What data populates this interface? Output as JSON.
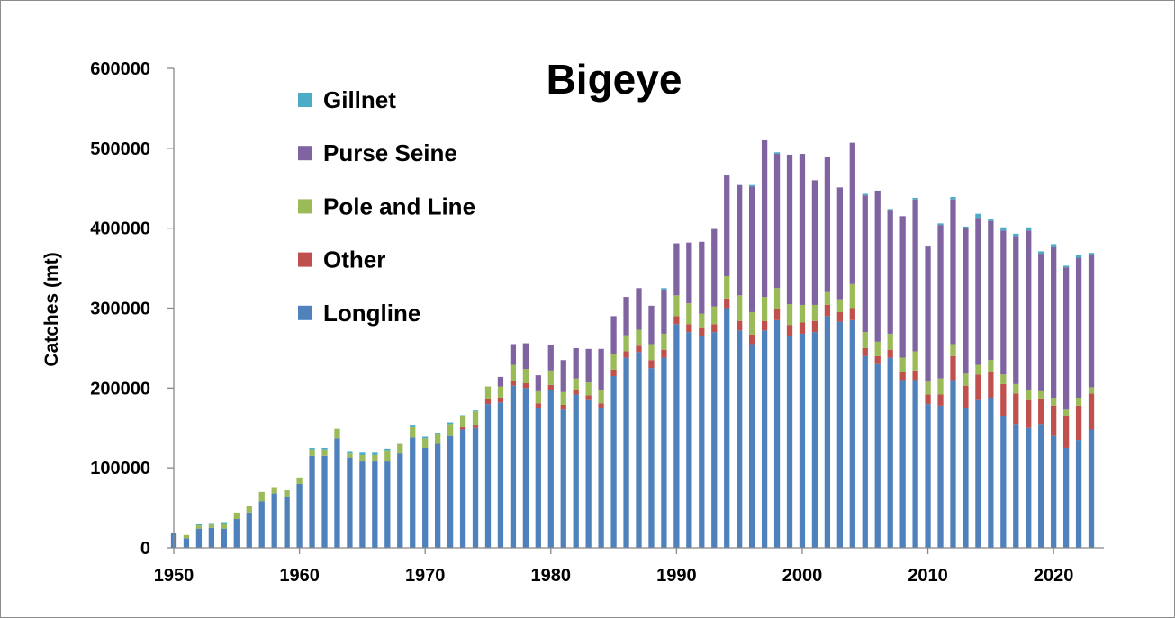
{
  "chart_data": {
    "type": "bar",
    "stacked": true,
    "title": "Bigeye",
    "xlabel": "",
    "ylabel": "Catches (mt)",
    "ylim": [
      0,
      600000
    ],
    "yticks": [
      0,
      100000,
      200000,
      300000,
      400000,
      500000,
      600000
    ],
    "yticks_labels": [
      "0",
      "100000",
      "200000",
      "300000",
      "400000",
      "500000",
      "600000"
    ],
    "xticks": [
      1950,
      1960,
      1970,
      1980,
      1990,
      2000,
      2010,
      2020
    ],
    "xticks_labels": [
      "1950",
      "1960",
      "1970",
      "1980",
      "1990",
      "2000",
      "2010",
      "2020"
    ],
    "grid": false,
    "legend_position": "top-left",
    "legend_order": [
      "Gillnet",
      "Purse Seine",
      "Pole and Line",
      "Other",
      "Longline"
    ],
    "x": [
      1950,
      1951,
      1952,
      1953,
      1954,
      1955,
      1956,
      1957,
      1958,
      1959,
      1960,
      1961,
      1962,
      1963,
      1964,
      1965,
      1966,
      1967,
      1968,
      1969,
      1970,
      1971,
      1972,
      1973,
      1974,
      1975,
      1976,
      1977,
      1978,
      1979,
      1980,
      1981,
      1982,
      1983,
      1984,
      1985,
      1986,
      1987,
      1988,
      1989,
      1990,
      1991,
      1992,
      1993,
      1994,
      1995,
      1996,
      1997,
      1998,
      1999,
      2000,
      2001,
      2002,
      2003,
      2004,
      2005,
      2006,
      2007,
      2008,
      2009,
      2010,
      2011,
      2012,
      2013,
      2014,
      2015,
      2016,
      2017,
      2018,
      2019,
      2020,
      2021,
      2022,
      2023
    ],
    "series": [
      {
        "name": "Longline",
        "color": "#4F81BD",
        "values": [
          18000,
          12000,
          24000,
          25000,
          24000,
          36000,
          44000,
          58000,
          68000,
          64000,
          80000,
          115000,
          115000,
          137000,
          113000,
          108000,
          108000,
          108000,
          118000,
          138000,
          125000,
          130000,
          140000,
          148000,
          150000,
          180000,
          182000,
          203000,
          200000,
          175000,
          198000,
          173000,
          192000,
          185000,
          175000,
          215000,
          238000,
          245000,
          225000,
          238000,
          280000,
          270000,
          265000,
          270000,
          300000,
          272000,
          255000,
          272000,
          285000,
          265000,
          268000,
          270000,
          290000,
          283000,
          285000,
          240000,
          230000,
          238000,
          210000,
          210000,
          180000,
          178000,
          210000,
          175000,
          185000,
          188000,
          165000,
          155000,
          150000,
          155000,
          140000,
          125000,
          135000,
          148000
        ]
      },
      {
        "name": "Other",
        "color": "#C0504D",
        "values": [
          0,
          0,
          0,
          0,
          0,
          0,
          0,
          0,
          0,
          0,
          0,
          0,
          0,
          0,
          0,
          0,
          0,
          0,
          0,
          0,
          0,
          0,
          0,
          3000,
          3000,
          6000,
          6000,
          6000,
          6000,
          6000,
          6000,
          6000,
          6000,
          6000,
          6000,
          8000,
          8000,
          8000,
          10000,
          10000,
          10000,
          10000,
          10000,
          10000,
          12000,
          12000,
          12000,
          12000,
          14000,
          14000,
          14000,
          14000,
          14000,
          12000,
          15000,
          10000,
          10000,
          10000,
          10000,
          12000,
          12000,
          14000,
          30000,
          28000,
          32000,
          33000,
          40000,
          38000,
          35000,
          32000,
          38000,
          40000,
          43000,
          45000
        ]
      },
      {
        "name": "Pole and Line",
        "color": "#9BBB59",
        "values": [
          0,
          4000,
          4000,
          4000,
          6000,
          8000,
          8000,
          12000,
          8000,
          8000,
          8000,
          8000,
          8000,
          12000,
          5000,
          8000,
          8000,
          14000,
          12000,
          13000,
          12000,
          12000,
          15000,
          14000,
          18000,
          16000,
          14000,
          20000,
          18000,
          15000,
          18000,
          16000,
          14000,
          16000,
          16000,
          20000,
          20000,
          20000,
          20000,
          20000,
          26000,
          26000,
          18000,
          22000,
          28000,
          32000,
          28000,
          30000,
          26000,
          26000,
          22000,
          20000,
          16000,
          16000,
          30000,
          20000,
          18000,
          20000,
          18000,
          24000,
          16000,
          20000,
          15000,
          15000,
          12000,
          14000,
          12000,
          12000,
          12000,
          9000,
          10000,
          8000,
          10000,
          8000
        ]
      },
      {
        "name": "Purse Seine",
        "color": "#8064A2",
        "values": [
          0,
          0,
          0,
          0,
          0,
          0,
          0,
          0,
          0,
          0,
          0,
          0,
          0,
          0,
          0,
          0,
          0,
          0,
          0,
          0,
          0,
          0,
          0,
          0,
          0,
          0,
          12000,
          26000,
          32000,
          20000,
          32000,
          40000,
          38000,
          42000,
          52000,
          47000,
          48000,
          52000,
          48000,
          55000,
          65000,
          76000,
          90000,
          97000,
          126000,
          138000,
          157000,
          196000,
          168000,
          187000,
          189000,
          156000,
          169000,
          140000,
          177000,
          171000,
          189000,
          154000,
          177000,
          190000,
          169000,
          192000,
          181000,
          182000,
          184000,
          174000,
          180000,
          185000,
          200000,
          172000,
          188000,
          178000,
          175000,
          165000
        ]
      },
      {
        "name": "Gillnet",
        "color": "#4BACC6",
        "values": [
          0,
          0,
          2000,
          2000,
          2000,
          0,
          0,
          0,
          0,
          0,
          0,
          2000,
          2000,
          0,
          3000,
          3000,
          3000,
          2000,
          0,
          2000,
          2000,
          2000,
          2000,
          1000,
          1000,
          0,
          0,
          0,
          0,
          0,
          0,
          0,
          0,
          0,
          0,
          0,
          0,
          0,
          0,
          2000,
          0,
          0,
          0,
          0,
          0,
          0,
          2000,
          0,
          2000,
          0,
          0,
          0,
          0,
          0,
          0,
          2000,
          0,
          2000,
          0,
          2000,
          0,
          2000,
          3000,
          2000,
          5000,
          3000,
          4000,
          3000,
          4000,
          3000,
          4000,
          2000,
          3000,
          3000
        ]
      }
    ]
  }
}
